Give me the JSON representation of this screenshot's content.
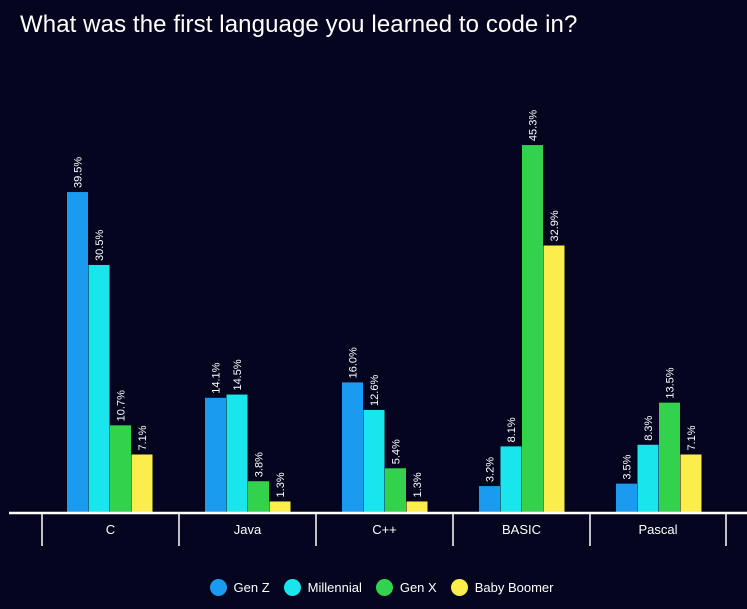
{
  "chart_data": {
    "type": "bar",
    "title": "What was the first language you learned to code in?",
    "categories": [
      "C",
      "Java",
      "C++",
      "BASIC",
      "Pascal"
    ],
    "series": [
      {
        "name": "Gen Z",
        "color": "#1a9bf0",
        "values": [
          39.5,
          14.1,
          16.0,
          3.2,
          3.5
        ],
        "labels": [
          "39.5%",
          "14.1%",
          "16.0%",
          "3.2%",
          "3.5%"
        ]
      },
      {
        "name": "Millennial",
        "color": "#19e6ec",
        "values": [
          30.5,
          14.5,
          12.6,
          8.1,
          8.3
        ],
        "labels": [
          "30.5%",
          "14.5%",
          "12.6%",
          "8.1%",
          "8.3%"
        ]
      },
      {
        "name": "Gen X",
        "color": "#33d24d",
        "values": [
          10.7,
          3.8,
          5.4,
          45.3,
          13.5
        ],
        "labels": [
          "10.7%",
          "3.8%",
          "5.4%",
          "45.3%",
          "13.5%"
        ]
      },
      {
        "name": "Baby Boomer",
        "color": "#fbee4c",
        "values": [
          7.1,
          1.3,
          1.3,
          32.9,
          7.1
        ],
        "labels": [
          "7.1%",
          "1.3%",
          "1.3%",
          "32.9%",
          "7.1%"
        ]
      }
    ],
    "xlabel": "",
    "ylabel": "",
    "ylim": [
      0,
      50
    ],
    "grid": false,
    "legend_position": "bottom-center"
  }
}
